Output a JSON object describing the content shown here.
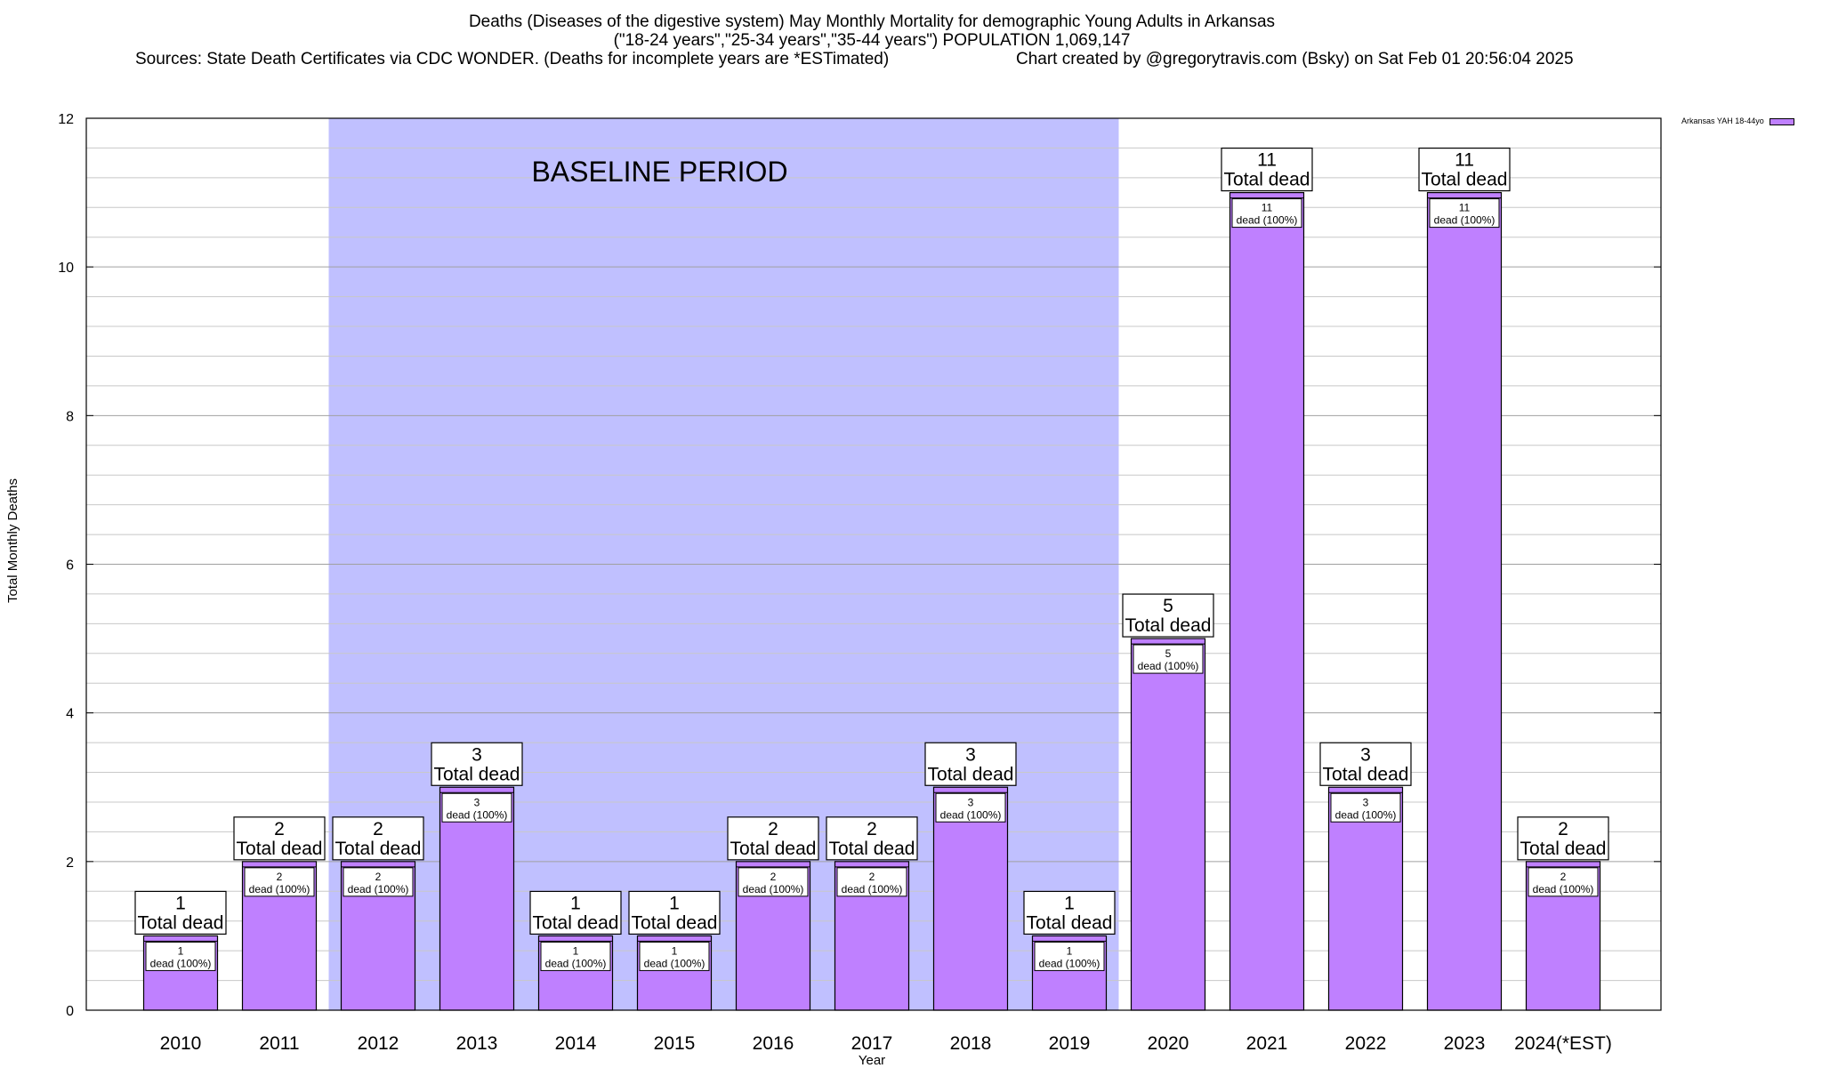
{
  "header": {
    "title_line1": "Deaths (Diseases of the digestive system) May Monthly Mortality for demographic Young Adults in Arkansas",
    "title_line2": "(\"18-24 years\",\"25-34 years\",\"35-44 years\") POPULATION 1,069,147",
    "sources": "Sources: State Death Certificates via CDC WONDER. (Deaths for incomplete years are *ESTimated)",
    "credit": "Chart created by @gregorytravis.com (Bsky) on Sat Feb 01 20:56:04 2025"
  },
  "chart_data": {
    "type": "bar",
    "title": "Deaths (Diseases of the digestive system) May Monthly Mortality for demographic Young Adults in Arkansas",
    "xlabel": "Year",
    "ylabel": "Total Monthly Deaths",
    "ylim": [
      0,
      12
    ],
    "yticks": [
      0,
      2,
      4,
      6,
      8,
      10,
      12
    ],
    "grid": true,
    "legend_position": "top-right",
    "categories": [
      "2010",
      "2011",
      "2012",
      "2013",
      "2014",
      "2015",
      "2016",
      "2017",
      "2018",
      "2019",
      "2020",
      "2021",
      "2022",
      "2023",
      "2024(*EST)"
    ],
    "series": [
      {
        "name": "Arkansas YAH 18-44yo",
        "color": "#bf80ff",
        "values": [
          1,
          2,
          2,
          3,
          1,
          1,
          2,
          2,
          3,
          1,
          5,
          11,
          3,
          11,
          2
        ]
      }
    ],
    "total_label_suffix": "Total dead",
    "inner_label_suffix": "dead (100%)",
    "baseline": {
      "label": "BASELINE PERIOD",
      "from": "2012",
      "to": "2019",
      "color": "#c0c0ff"
    }
  }
}
